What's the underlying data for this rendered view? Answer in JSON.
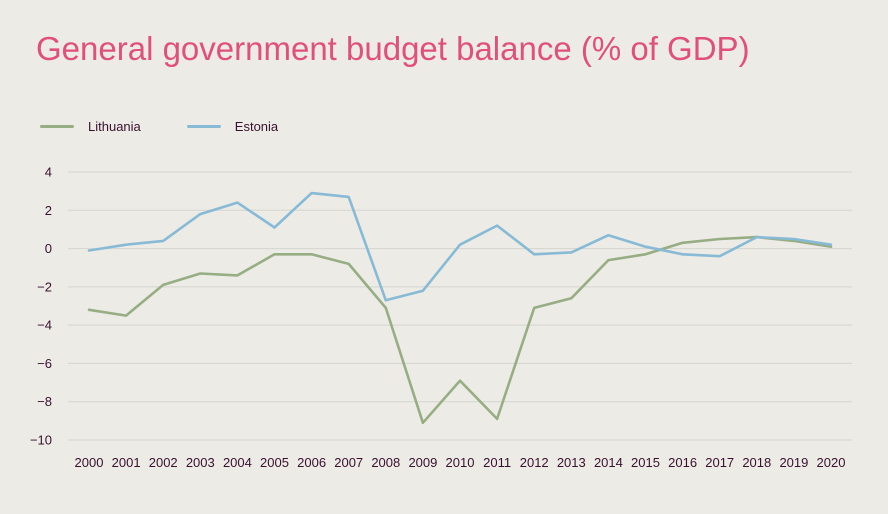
{
  "title": "General government budget balance (% of GDP)",
  "colors": {
    "title": "#e0507a",
    "text": "#3a1030",
    "grid": "#d6d5cf",
    "background": "#ecebe6"
  },
  "chart_data": {
    "type": "line",
    "title": "General government budget balance (% of GDP)",
    "xlabel": "",
    "ylabel": "",
    "x": [
      "2000",
      "2001",
      "2002",
      "2003",
      "2004",
      "2005",
      "2006",
      "2007",
      "2008",
      "2009",
      "2010",
      "2011",
      "2012",
      "2013",
      "2014",
      "2015",
      "2016",
      "2017",
      "2018",
      "2019",
      "2020"
    ],
    "ylim": [
      -10,
      4
    ],
    "yticks": [
      4,
      2,
      0,
      -2,
      -4,
      -6,
      -8,
      -10
    ],
    "ytick_labels": [
      "4",
      "2",
      "0",
      "−2",
      "−4",
      "−6",
      "−8",
      "−10"
    ],
    "grid": true,
    "legend_position": "top-left",
    "series": [
      {
        "name": "Lithuania",
        "color": "#97ad84",
        "values": [
          -3.2,
          -3.5,
          -1.9,
          -1.3,
          -1.4,
          -0.3,
          -0.3,
          -0.8,
          -3.1,
          -9.1,
          -6.9,
          -8.9,
          -3.1,
          -2.6,
          -0.6,
          -0.3,
          0.3,
          0.5,
          0.6,
          0.4,
          0.1
        ]
      },
      {
        "name": "Estonia",
        "color": "#88bad6",
        "values": [
          -0.1,
          0.2,
          0.4,
          1.8,
          2.4,
          1.1,
          2.9,
          2.7,
          -2.7,
          -2.2,
          0.2,
          1.2,
          -0.3,
          -0.2,
          0.7,
          0.1,
          -0.3,
          -0.4,
          0.6,
          0.5,
          0.2
        ]
      }
    ]
  }
}
